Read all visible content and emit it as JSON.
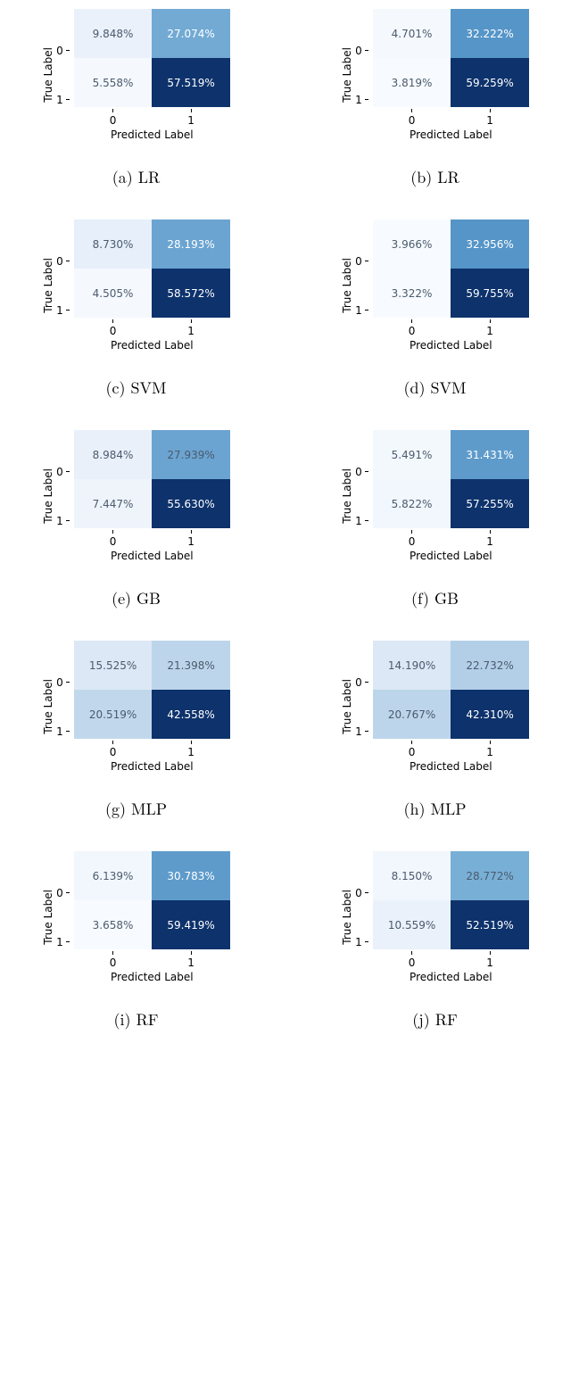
{
  "xlabel": "Predicted Label",
  "ylabel": "True Label",
  "xticks": [
    "0",
    "1"
  ],
  "yticks": [
    "0",
    "1"
  ],
  "text_dark": "#4b5a6d",
  "text_light": "#ffffff",
  "panels": [
    {
      "caption": "(a) LR",
      "cells": [
        {
          "val": "9.848%",
          "bg": "#eaf1fa",
          "fg": "dark"
        },
        {
          "val": "27.074%",
          "bg": "#72aad4",
          "fg": "light"
        },
        {
          "val": "5.558%",
          "bg": "#f5f9fe",
          "fg": "dark"
        },
        {
          "val": "57.519%",
          "bg": "#0d326c",
          "fg": "light"
        }
      ]
    },
    {
      "caption": "(b) LR",
      "cells": [
        {
          "val": "4.701%",
          "bg": "#f5f9fe",
          "fg": "dark"
        },
        {
          "val": "32.222%",
          "bg": "#5595c8",
          "fg": "light"
        },
        {
          "val": "3.819%",
          "bg": "#f7fbff",
          "fg": "dark"
        },
        {
          "val": "59.259%",
          "bg": "#0d326c",
          "fg": "light"
        }
      ]
    },
    {
      "caption": "(c) SVM",
      "cells": [
        {
          "val": "8.730%",
          "bg": "#e6effa",
          "fg": "dark"
        },
        {
          "val": "28.193%",
          "bg": "#6ba4d1",
          "fg": "light"
        },
        {
          "val": "4.505%",
          "bg": "#f5f9fe",
          "fg": "dark"
        },
        {
          "val": "58.572%",
          "bg": "#0d326c",
          "fg": "light"
        }
      ]
    },
    {
      "caption": "(d) SVM",
      "cells": [
        {
          "val": "3.966%",
          "bg": "#f7fbff",
          "fg": "dark"
        },
        {
          "val": "32.956%",
          "bg": "#5595c8",
          "fg": "light"
        },
        {
          "val": "3.322%",
          "bg": "#f7fbff",
          "fg": "dark"
        },
        {
          "val": "59.755%",
          "bg": "#0d326c",
          "fg": "light"
        }
      ]
    },
    {
      "caption": "(e) GB",
      "cells": [
        {
          "val": "8.984%",
          "bg": "#e9f0fa",
          "fg": "dark"
        },
        {
          "val": "27.939%",
          "bg": "#6ba4d1",
          "fg": "dark"
        },
        {
          "val": "7.447%",
          "bg": "#eff4fb",
          "fg": "dark"
        },
        {
          "val": "55.630%",
          "bg": "#0d326c",
          "fg": "light"
        }
      ]
    },
    {
      "caption": "(f) GB",
      "cells": [
        {
          "val": "5.491%",
          "bg": "#f3f8fd",
          "fg": "dark"
        },
        {
          "val": "31.431%",
          "bg": "#5e9bcb",
          "fg": "light"
        },
        {
          "val": "5.822%",
          "bg": "#f1f7fc",
          "fg": "dark"
        },
        {
          "val": "57.255%",
          "bg": "#0d326c",
          "fg": "light"
        }
      ]
    },
    {
      "caption": "(g) MLP",
      "cells": [
        {
          "val": "15.525%",
          "bg": "#dce8f5",
          "fg": "dark"
        },
        {
          "val": "21.398%",
          "bg": "#bcd5ea",
          "fg": "dark"
        },
        {
          "val": "20.519%",
          "bg": "#c1d8ec",
          "fg": "dark"
        },
        {
          "val": "42.558%",
          "bg": "#0d326c",
          "fg": "light"
        }
      ]
    },
    {
      "caption": "(h) MLP",
      "cells": [
        {
          "val": "14.190%",
          "bg": "#dce8f5",
          "fg": "dark"
        },
        {
          "val": "22.732%",
          "bg": "#b3cfe7",
          "fg": "dark"
        },
        {
          "val": "20.767%",
          "bg": "#bcd5ea",
          "fg": "dark"
        },
        {
          "val": "42.310%",
          "bg": "#0d326c",
          "fg": "light"
        }
      ]
    },
    {
      "caption": "(i) RF",
      "cells": [
        {
          "val": "6.139%",
          "bg": "#f2f7fd",
          "fg": "dark"
        },
        {
          "val": "30.783%",
          "bg": "#5e9bcb",
          "fg": "light"
        },
        {
          "val": "3.658%",
          "bg": "#f7fbff",
          "fg": "dark"
        },
        {
          "val": "59.419%",
          "bg": "#0d326c",
          "fg": "light"
        }
      ]
    },
    {
      "caption": "(j) RF",
      "cells": [
        {
          "val": "8.150%",
          "bg": "#f2f7fd",
          "fg": "dark"
        },
        {
          "val": "28.772%",
          "bg": "#78afd6",
          "fg": "dark"
        },
        {
          "val": "10.559%",
          "bg": "#eaf1fa",
          "fg": "dark"
        },
        {
          "val": "52.519%",
          "bg": "#0d326c",
          "fg": "light"
        }
      ]
    }
  ]
}
